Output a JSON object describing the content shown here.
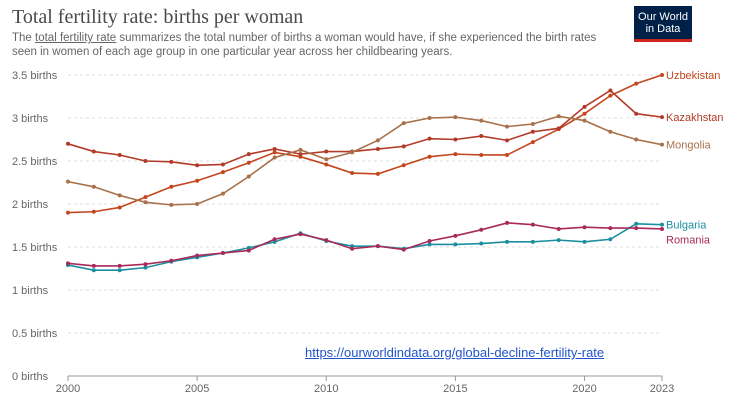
{
  "header": {
    "title": "Total fertility rate: births per woman",
    "subtitle_link": "total fertility rate",
    "subtitle_pre": "The ",
    "subtitle_post": " summarizes the total number of births a woman would have, if she experienced the birth rates seen in women of each age group in one particular year across her childbearing years."
  },
  "logo": {
    "line1": "Our World",
    "line2": "in Data"
  },
  "source_link": "https://ourworldindata.org/global-decline-fertility-rate",
  "chart_data": {
    "type": "line",
    "title": "Total fertility rate: births per woman",
    "xlabel": "",
    "ylabel": "",
    "xlim": [
      2000,
      2023
    ],
    "ylim": [
      0,
      3.5
    ],
    "x_ticks": [
      2000,
      2005,
      2010,
      2015,
      2020,
      2023
    ],
    "y_ticks": [
      {
        "value": 0,
        "label": "0 births"
      },
      {
        "value": 0.5,
        "label": "0.5 births"
      },
      {
        "value": 1,
        "label": "1 births"
      },
      {
        "value": 1.5,
        "label": "1.5 births"
      },
      {
        "value": 2,
        "label": "2 births"
      },
      {
        "value": 2.5,
        "label": "2.5 births"
      },
      {
        "value": 3,
        "label": "3 births"
      },
      {
        "value": 3.5,
        "label": "3.5 births"
      }
    ],
    "grid": true,
    "x": [
      2000,
      2001,
      2002,
      2003,
      2004,
      2005,
      2006,
      2007,
      2008,
      2009,
      2010,
      2011,
      2012,
      2013,
      2014,
      2015,
      2016,
      2017,
      2018,
      2019,
      2020,
      2021,
      2022,
      2023
    ],
    "series": [
      {
        "name": "Uzbekistan",
        "color": "#c4461e",
        "values": [
          1.9,
          1.91,
          1.96,
          2.08,
          2.2,
          2.27,
          2.37,
          2.48,
          2.6,
          2.55,
          2.46,
          2.36,
          2.35,
          2.45,
          2.55,
          2.58,
          2.57,
          2.57,
          2.72,
          2.87,
          3.05,
          3.26,
          3.4,
          3.5
        ]
      },
      {
        "name": "Kazakhstan",
        "color": "#b23a28",
        "values": [
          2.7,
          2.61,
          2.57,
          2.5,
          2.49,
          2.45,
          2.46,
          2.58,
          2.64,
          2.58,
          2.61,
          2.61,
          2.64,
          2.67,
          2.76,
          2.75,
          2.79,
          2.74,
          2.84,
          2.88,
          3.13,
          3.32,
          3.05,
          3.01
        ]
      },
      {
        "name": "Mongolia",
        "color": "#a8714a",
        "values": [
          2.26,
          2.2,
          2.1,
          2.02,
          1.99,
          2.0,
          2.12,
          2.32,
          2.54,
          2.63,
          2.52,
          2.6,
          2.74,
          2.94,
          3.0,
          3.01,
          2.97,
          2.9,
          2.93,
          3.02,
          2.97,
          2.84,
          2.75,
          2.69
        ]
      },
      {
        "name": "Bulgaria",
        "color": "#1b8fa0",
        "values": [
          1.29,
          1.23,
          1.23,
          1.26,
          1.33,
          1.38,
          1.43,
          1.49,
          1.56,
          1.66,
          1.57,
          1.51,
          1.51,
          1.48,
          1.53,
          1.53,
          1.54,
          1.56,
          1.56,
          1.58,
          1.56,
          1.59,
          1.77,
          1.76
        ]
      },
      {
        "name": "Romania",
        "color": "#a82a5a",
        "values": [
          1.31,
          1.28,
          1.28,
          1.3,
          1.34,
          1.4,
          1.43,
          1.46,
          1.59,
          1.65,
          1.58,
          1.48,
          1.51,
          1.47,
          1.57,
          1.63,
          1.7,
          1.78,
          1.76,
          1.71,
          1.73,
          1.72,
          1.72,
          1.71
        ]
      }
    ]
  }
}
